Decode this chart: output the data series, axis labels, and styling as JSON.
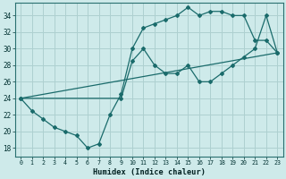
{
  "xlabel": "Humidex (Indice chaleur)",
  "bg_color": "#ceeaea",
  "grid_color": "#aed0d0",
  "line_color": "#1a6b6b",
  "xlim": [
    -0.5,
    23.5
  ],
  "ylim": [
    17.0,
    35.5
  ],
  "xticks": [
    0,
    1,
    2,
    3,
    4,
    5,
    6,
    7,
    8,
    9,
    10,
    11,
    12,
    13,
    14,
    15,
    16,
    17,
    18,
    19,
    20,
    21,
    22,
    23
  ],
  "yticks": [
    18,
    20,
    22,
    24,
    26,
    28,
    30,
    32,
    34
  ],
  "line1_x": [
    0,
    1,
    2,
    3,
    4,
    5,
    6,
    7,
    8,
    9,
    10,
    11,
    12,
    13,
    14,
    15,
    16,
    17,
    18,
    19,
    20,
    21,
    22,
    23
  ],
  "line1_y": [
    24,
    22.5,
    21.5,
    20.5,
    20,
    19.5,
    18,
    18.5,
    22,
    24.5,
    30,
    32.5,
    33,
    33.5,
    34,
    35,
    34,
    34.5,
    34.5,
    34,
    34,
    31,
    31,
    29.5
  ],
  "line2_x": [
    0,
    9,
    10,
    11,
    12,
    13,
    14,
    15,
    16,
    17,
    18,
    19,
    20,
    21,
    22,
    23
  ],
  "line2_y": [
    24,
    24,
    28.5,
    30,
    28,
    27,
    27,
    28,
    26,
    26,
    27,
    28,
    29,
    30,
    34,
    29.5
  ],
  "line3_x": [
    0,
    23
  ],
  "line3_y": [
    24,
    29.5
  ]
}
